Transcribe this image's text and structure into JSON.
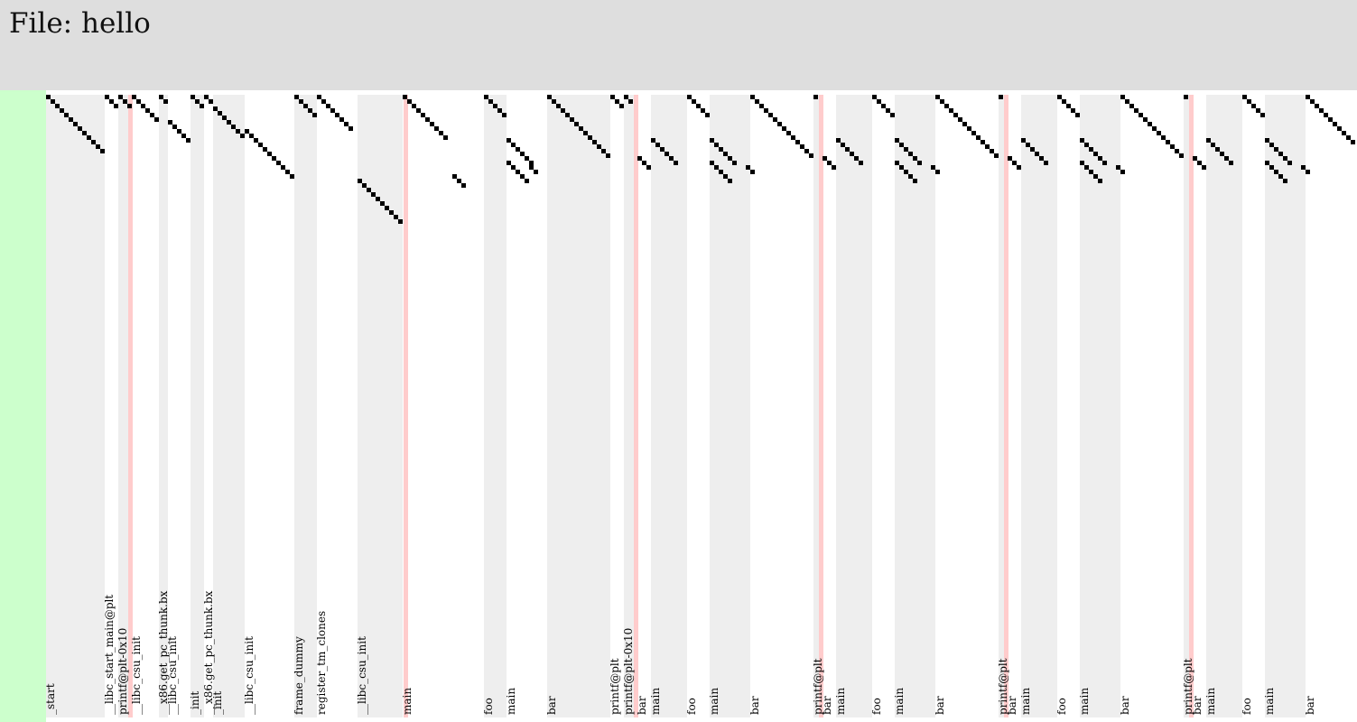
{
  "file": {
    "prefix": "File:",
    "name": "hello"
  },
  "segments": [
    {
      "name": "_start",
      "shaded": true
    },
    {
      "name": "__libc_start_main@plt",
      "shaded": false
    },
    {
      "name": "printf@plt-0x10",
      "shaded": true
    },
    {
      "name": "__libc_csu_init",
      "shaded": false
    },
    {
      "name": "__x86.get_pc_thunk.bx",
      "shaded": true
    },
    {
      "name": "__libc_csu_init",
      "shaded": false
    },
    {
      "name": "_init",
      "shaded": true
    },
    {
      "name": "__x86.get_pc_thunk.bx",
      "shaded": false
    },
    {
      "name": "_init",
      "shaded": true
    },
    {
      "name": "__libc_csu_init",
      "shaded": false
    },
    {
      "name": "frame_dummy",
      "shaded": true
    },
    {
      "name": "register_tm_clones",
      "shaded": false
    },
    {
      "name": "__libc_csu_init",
      "shaded": true
    },
    {
      "name": "main",
      "shaded": false
    },
    {
      "name": "foo",
      "shaded": true
    },
    {
      "name": "main",
      "shaded": false
    },
    {
      "name": "bar",
      "shaded": true
    },
    {
      "name": "printf@plt",
      "shaded": false
    },
    {
      "name": "printf@plt-0x10",
      "shaded": true
    },
    {
      "name": "bar",
      "shaded": false
    },
    {
      "name": "main",
      "shaded": true
    },
    {
      "name": "foo",
      "shaded": false
    },
    {
      "name": "main",
      "shaded": true
    },
    {
      "name": "bar",
      "shaded": false
    },
    {
      "name": "printf@plt",
      "shaded": true
    },
    {
      "name": "bar",
      "shaded": false
    },
    {
      "name": "main",
      "shaded": true
    },
    {
      "name": "foo",
      "shaded": false
    },
    {
      "name": "main",
      "shaded": true
    },
    {
      "name": "bar",
      "shaded": false
    },
    {
      "name": "printf@plt",
      "shaded": true
    },
    {
      "name": "bar",
      "shaded": false
    },
    {
      "name": "main",
      "shaded": true
    },
    {
      "name": "foo",
      "shaded": false
    },
    {
      "name": "main",
      "shaded": true
    },
    {
      "name": "bar",
      "shaded": false
    },
    {
      "name": "printf@plt",
      "shaded": true
    },
    {
      "name": "bar",
      "shaded": false
    },
    {
      "name": "main",
      "shaded": true
    },
    {
      "name": "foo",
      "shaded": false
    },
    {
      "name": "main",
      "shaded": true
    },
    {
      "name": "bar",
      "shaded": false
    }
  ],
  "colors": {
    "header": "#dedede",
    "gutter": "#ccffcc",
    "band": "#eeeeee",
    "marker": "#ffcccc",
    "step": "#000000"
  }
}
